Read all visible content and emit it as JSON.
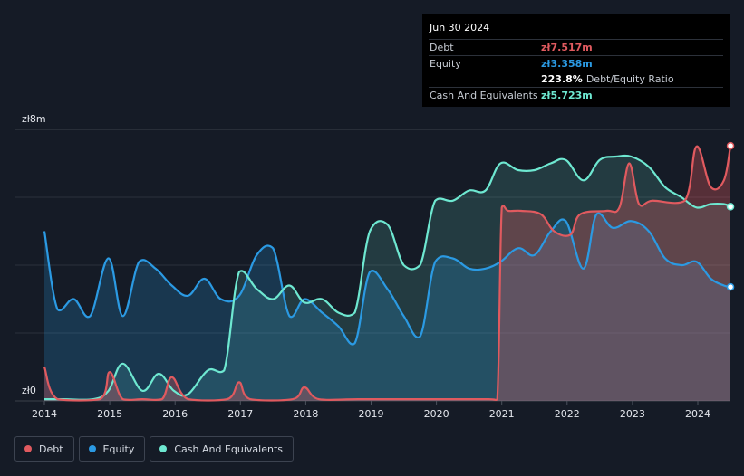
{
  "tooltip": {
    "date": "Jun 30 2024",
    "rows": [
      {
        "label": "Debt",
        "value": "zł7.517m",
        "color": "#e05a5f"
      },
      {
        "label": "Equity",
        "value": "zł3.358m",
        "color": "#2b9ae3"
      }
    ],
    "ratio_value": "223.8%",
    "ratio_label": "Debt/Equity Ratio",
    "cash": {
      "label": "Cash And Equivalents",
      "value": "zł5.723m",
      "color": "#6ee8d1"
    }
  },
  "y_axis": {
    "top_label": "zł8m",
    "bottom_label": "zł0"
  },
  "legend": [
    {
      "label": "Debt",
      "color": "#e05a5f"
    },
    {
      "label": "Equity",
      "color": "#2b9ae3"
    },
    {
      "label": "Cash And Equivalents",
      "color": "#6ee8d1"
    }
  ],
  "chart_data": {
    "type": "area",
    "x_ticks": [
      "2014",
      "2015",
      "2016",
      "2017",
      "2018",
      "2019",
      "2020",
      "2021",
      "2022",
      "2023",
      "2024"
    ],
    "ylim": [
      0,
      8
    ],
    "y_unit": "zł m",
    "series": [
      {
        "name": "Debt",
        "color": "#e05a5f",
        "x": [
          2014.0,
          2014.2,
          2014.85,
          2015.0,
          2015.2,
          2015.5,
          2015.8,
          2015.95,
          2016.2,
          2016.8,
          2016.98,
          2017.15,
          2017.8,
          2017.98,
          2018.2,
          2018.8,
          2019.8,
          2020.8,
          2020.93,
          2021.0,
          2021.1,
          2021.3,
          2021.6,
          2021.8,
          2022.05,
          2022.2,
          2022.6,
          2022.8,
          2022.95,
          2023.1,
          2023.3,
          2023.8,
          2023.98,
          2024.2,
          2024.4,
          2024.5
        ],
        "values": [
          1.0,
          0.05,
          0.05,
          0.85,
          0.05,
          0.05,
          0.05,
          0.7,
          0.05,
          0.05,
          0.55,
          0.05,
          0.05,
          0.4,
          0.05,
          0.05,
          0.05,
          0.05,
          0.05,
          5.7,
          5.6,
          5.6,
          5.5,
          5.0,
          4.9,
          5.5,
          5.6,
          5.7,
          7.0,
          5.8,
          5.9,
          5.9,
          7.5,
          6.3,
          6.5,
          7.517
        ]
      },
      {
        "name": "Equity",
        "color": "#2b9ae3",
        "x": [
          2014.0,
          2014.2,
          2014.45,
          2014.7,
          2014.98,
          2015.2,
          2015.45,
          2015.7,
          2015.95,
          2016.2,
          2016.45,
          2016.7,
          2016.98,
          2017.25,
          2017.5,
          2017.75,
          2017.98,
          2018.25,
          2018.5,
          2018.75,
          2018.98,
          2019.25,
          2019.5,
          2019.75,
          2019.98,
          2020.25,
          2020.5,
          2020.75,
          2020.98,
          2021.25,
          2021.5,
          2021.75,
          2021.98,
          2022.25,
          2022.45,
          2022.7,
          2022.98,
          2023.25,
          2023.5,
          2023.75,
          2023.98,
          2024.2,
          2024.4,
          2024.5
        ],
        "values": [
          5.0,
          2.7,
          3.0,
          2.5,
          4.2,
          2.5,
          4.1,
          3.9,
          3.4,
          3.1,
          3.6,
          3.0,
          3.1,
          4.3,
          4.5,
          2.5,
          3.0,
          2.6,
          2.2,
          1.7,
          3.8,
          3.3,
          2.5,
          1.9,
          4.1,
          4.2,
          3.9,
          3.9,
          4.1,
          4.5,
          4.3,
          5.0,
          5.3,
          3.9,
          5.5,
          5.1,
          5.3,
          5.0,
          4.2,
          4.0,
          4.1,
          3.6,
          3.4,
          3.358
        ]
      },
      {
        "name": "Cash And Equivalents",
        "color": "#6ee8d1",
        "x": [
          2014.0,
          2014.3,
          2014.75,
          2014.98,
          2015.2,
          2015.5,
          2015.75,
          2015.98,
          2016.2,
          2016.5,
          2016.75,
          2016.98,
          2017.25,
          2017.5,
          2017.75,
          2017.98,
          2018.25,
          2018.5,
          2018.75,
          2018.98,
          2019.25,
          2019.5,
          2019.75,
          2019.98,
          2020.25,
          2020.5,
          2020.75,
          2020.98,
          2021.25,
          2021.5,
          2021.75,
          2021.98,
          2022.25,
          2022.5,
          2022.75,
          2022.98,
          2023.25,
          2023.5,
          2023.75,
          2023.98,
          2024.2,
          2024.4,
          2024.5
        ],
        "values": [
          0.05,
          0.05,
          0.05,
          0.3,
          1.1,
          0.3,
          0.8,
          0.3,
          0.2,
          0.9,
          0.9,
          3.8,
          3.3,
          3.0,
          3.4,
          2.9,
          3.0,
          2.6,
          2.6,
          5.0,
          5.2,
          4.0,
          4.0,
          5.9,
          5.9,
          6.2,
          6.2,
          7.0,
          6.8,
          6.8,
          7.0,
          7.1,
          6.5,
          7.1,
          7.2,
          7.2,
          6.9,
          6.3,
          6.0,
          5.7,
          5.8,
          5.8,
          5.723
        ]
      }
    ]
  }
}
